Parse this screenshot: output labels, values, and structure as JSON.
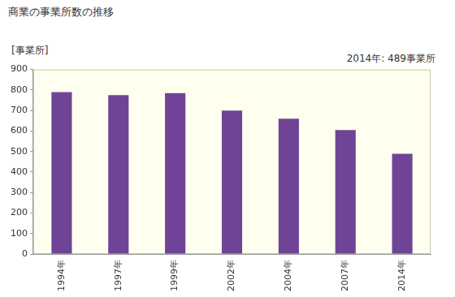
{
  "chart_data": {
    "type": "bar",
    "title": "商業の事業所数の推移",
    "ylabel": "[事業所]",
    "annotation": "2014年: 489事業所",
    "categories": [
      "1994年",
      "1997年",
      "1999年",
      "2002年",
      "2004年",
      "2007年",
      "2014年"
    ],
    "values": [
      790,
      775,
      785,
      700,
      660,
      605,
      489
    ],
    "color": "#6f4496",
    "ylim": [
      0,
      900
    ],
    "yticks": [
      0,
      100,
      200,
      300,
      400,
      500,
      600,
      700,
      800,
      900
    ],
    "grid": false
  }
}
